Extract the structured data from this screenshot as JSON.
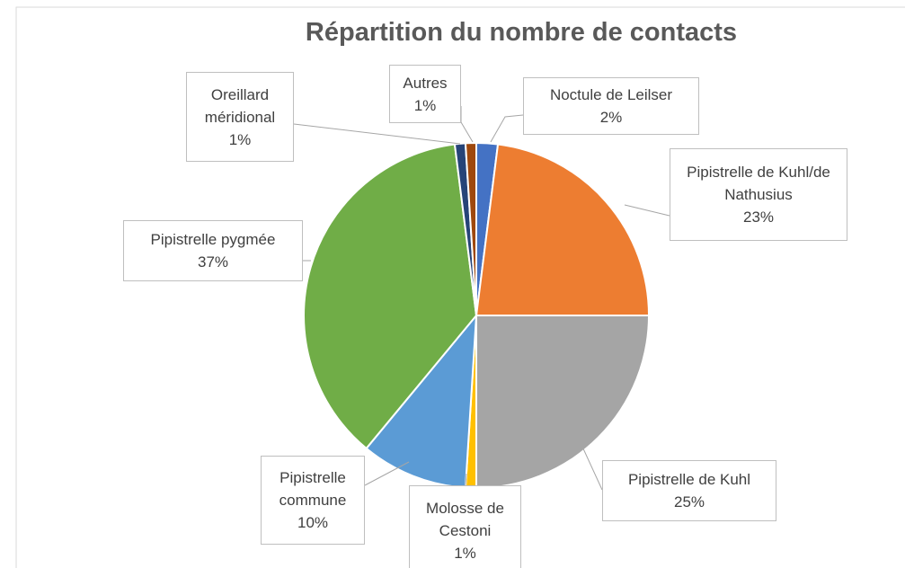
{
  "chart_data": {
    "type": "pie",
    "title": "Répartition du nombre de contacts",
    "categories": [
      "Noctule de Leilser",
      "Pipistrelle de Kuhl/de Nathusius",
      "Pipistrelle de Kuhl",
      "Molosse de Cestoni",
      "Pipistrelle commune",
      "Pipistrelle pygmée",
      "Oreillard méridional",
      "Autres"
    ],
    "values": [
      2,
      23,
      25,
      1,
      10,
      37,
      1,
      1
    ],
    "value_labels": [
      "2%",
      "23%",
      "25%",
      "1%",
      "10%",
      "37%",
      "1%",
      "1%"
    ],
    "colors": [
      "#4472c4",
      "#ed7d31",
      "#a5a5a5",
      "#ffc000",
      "#5b9bd5",
      "#70ad47",
      "#264478",
      "#9e480e"
    ]
  }
}
